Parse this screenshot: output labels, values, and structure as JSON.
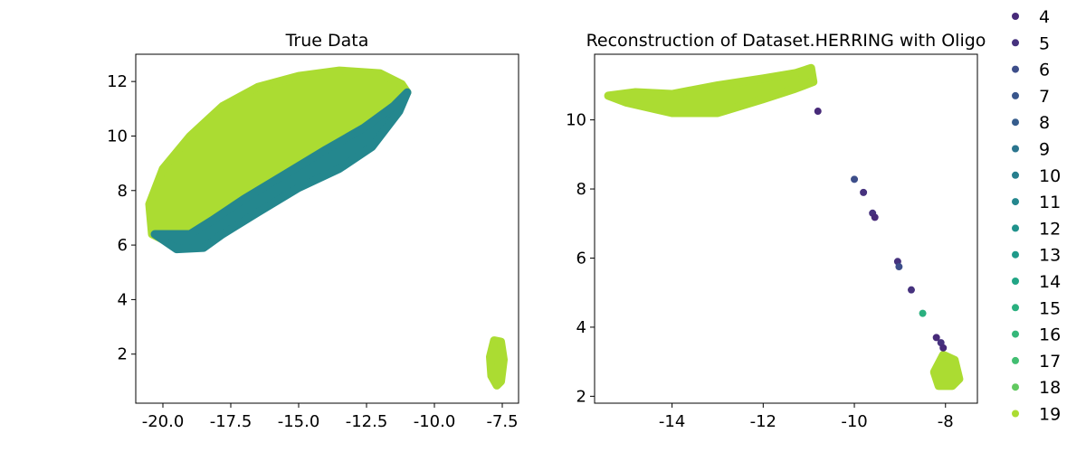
{
  "colors": {
    "4": "#472a79",
    "5": "#46327e",
    "6": "#3d4e8a",
    "7": "#39568c",
    "8": "#365d8d",
    "9": "#2b758e",
    "10": "#277f8e",
    "11": "#24878e",
    "12": "#20928c",
    "13": "#1f9a8a",
    "14": "#21a585",
    "15": "#2ab07f",
    "16": "#35b779",
    "17": "#42be71",
    "18": "#61c960",
    "19": "#abdc32"
  },
  "legend": {
    "entries": [
      "4",
      "5",
      "6",
      "7",
      "8",
      "9",
      "10",
      "11",
      "12",
      "13",
      "14",
      "15",
      "16",
      "17",
      "18",
      "19"
    ],
    "placement": "right"
  },
  "chart_data": [
    {
      "type": "scatter",
      "title": "True Data",
      "xlabel": "",
      "ylabel": "",
      "xlim": [
        -21.0,
        -6.9
      ],
      "ylim": [
        0.2,
        13.0
      ],
      "xticks": [
        -20.0,
        -17.5,
        -15.0,
        -12.5,
        -10.0,
        -7.5
      ],
      "xtick_labels": [
        "-20.0",
        "-17.5",
        "-15.0",
        "-12.5",
        "-10.0",
        "-7.5"
      ],
      "yticks": [
        2,
        4,
        6,
        8,
        10,
        12
      ],
      "ytick_labels": [
        "2",
        "4",
        "6",
        "8",
        "10",
        "12"
      ],
      "grid": false,
      "clusters": [
        {
          "class": "19",
          "region": "main-blob",
          "outline": [
            [
              -20.4,
              6.4
            ],
            [
              -20.5,
              7.5
            ],
            [
              -20.0,
              8.8
            ],
            [
              -19.0,
              10.0
            ],
            [
              -17.8,
              11.1
            ],
            [
              -16.5,
              11.8
            ],
            [
              -15.0,
              12.2
            ],
            [
              -13.5,
              12.4
            ],
            [
              -12.0,
              12.3
            ],
            [
              -11.2,
              11.9
            ],
            [
              -11.0,
              11.6
            ],
            [
              -11.5,
              11.0
            ],
            [
              -12.6,
              10.2
            ],
            [
              -14.0,
              9.4
            ],
            [
              -15.5,
              8.5
            ],
            [
              -17.0,
              7.6
            ],
            [
              -18.2,
              6.8
            ],
            [
              -19.0,
              6.3
            ],
            [
              -19.8,
              6.1
            ]
          ]
        },
        {
          "class": "11",
          "region": "lower-rim",
          "outline": [
            [
              -20.3,
              6.4
            ],
            [
              -19.5,
              5.85
            ],
            [
              -18.5,
              5.9
            ],
            [
              -17.8,
              6.4
            ],
            [
              -16.5,
              7.2
            ],
            [
              -15.0,
              8.1
            ],
            [
              -13.5,
              8.8
            ],
            [
              -12.3,
              9.6
            ],
            [
              -11.3,
              10.9
            ],
            [
              -11.0,
              11.6
            ],
            [
              -11.5,
              11.1
            ],
            [
              -12.6,
              10.3
            ],
            [
              -14.0,
              9.5
            ],
            [
              -15.5,
              8.6
            ],
            [
              -17.0,
              7.7
            ],
            [
              -18.2,
              6.9
            ],
            [
              -19.0,
              6.4
            ]
          ]
        },
        {
          "class": "19",
          "region": "small-cluster",
          "outline": [
            [
              -7.8,
              2.5
            ],
            [
              -7.55,
              2.45
            ],
            [
              -7.45,
              1.8
            ],
            [
              -7.55,
              1.0
            ],
            [
              -7.7,
              0.85
            ],
            [
              -7.9,
              1.2
            ],
            [
              -7.95,
              1.9
            ]
          ]
        }
      ]
    },
    {
      "type": "scatter",
      "title": "Reconstruction of Dataset.HERRING with Oligo",
      "xlabel": "",
      "ylabel": "",
      "xlim": [
        -15.7,
        -7.3
      ],
      "ylim": [
        1.8,
        11.9
      ],
      "xticks": [
        -14,
        -12,
        -10,
        -8
      ],
      "xtick_labels": [
        "-14",
        "-12",
        "-10",
        "-8"
      ],
      "yticks": [
        2,
        4,
        6,
        8,
        10
      ],
      "ytick_labels": [
        "2",
        "4",
        "6",
        "8",
        "10"
      ],
      "grid": false,
      "points": [
        {
          "x": -10.8,
          "y": 10.25,
          "class": "4"
        },
        {
          "x": -10.0,
          "y": 8.28,
          "class": "6"
        },
        {
          "x": -9.8,
          "y": 7.9,
          "class": "5"
        },
        {
          "x": -9.6,
          "y": 7.3,
          "class": "5"
        },
        {
          "x": -9.55,
          "y": 7.18,
          "class": "4"
        },
        {
          "x": -9.05,
          "y": 5.9,
          "class": "5"
        },
        {
          "x": -9.02,
          "y": 5.75,
          "class": "6"
        },
        {
          "x": -8.75,
          "y": 5.08,
          "class": "5"
        },
        {
          "x": -8.5,
          "y": 4.4,
          "class": "15"
        },
        {
          "x": -8.2,
          "y": 3.7,
          "class": "4"
        },
        {
          "x": -8.1,
          "y": 3.55,
          "class": "5"
        },
        {
          "x": -8.05,
          "y": 3.4,
          "class": "4"
        }
      ],
      "clusters": [
        {
          "class": "19",
          "region": "upper-band",
          "outline": [
            [
              -15.4,
              10.7
            ],
            [
              -15.0,
              10.5
            ],
            [
              -14.5,
              10.35
            ],
            [
              -14.0,
              10.2
            ],
            [
              -13.0,
              10.2
            ],
            [
              -12.0,
              10.6
            ],
            [
              -11.3,
              10.9
            ],
            [
              -10.9,
              11.1
            ],
            [
              -10.95,
              11.5
            ],
            [
              -11.3,
              11.35
            ],
            [
              -12.0,
              11.2
            ],
            [
              -13.0,
              11.0
            ],
            [
              -14.0,
              10.75
            ],
            [
              -14.8,
              10.8
            ]
          ]
        },
        {
          "class": "19",
          "region": "lower-cluster",
          "outline": [
            [
              -8.05,
              3.2
            ],
            [
              -7.8,
              3.05
            ],
            [
              -7.7,
              2.5
            ],
            [
              -7.85,
              2.3
            ],
            [
              -8.15,
              2.3
            ],
            [
              -8.25,
              2.7
            ]
          ]
        }
      ]
    }
  ]
}
